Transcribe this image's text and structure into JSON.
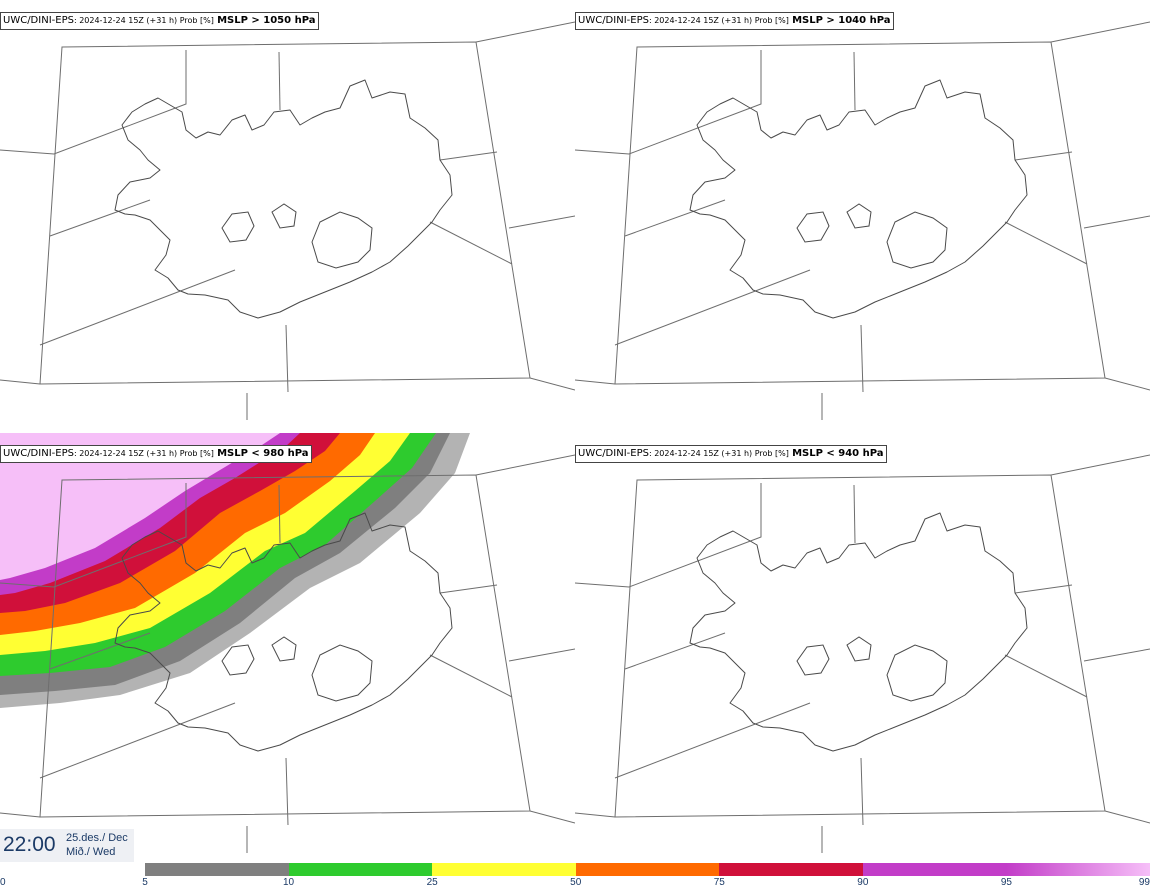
{
  "panels": [
    {
      "model": "UWC/DINI-EPS",
      "run": ": 2024-12-24 15Z (+31 h) Prob [%]",
      "param": "MSLP > 1050 hPa"
    },
    {
      "model": "UWC/DINI-EPS",
      "run": ": 2024-12-24 15Z (+31 h) Prob [%]",
      "param": "MSLP > 1040 hPa"
    },
    {
      "model": "UWC/DINI-EPS",
      "run": ": 2024-12-24 15Z (+31 h) Prob [%]",
      "param": "MSLP < 980 hPa"
    },
    {
      "model": "UWC/DINI-EPS",
      "run": ": 2024-12-24 15Z (+31 h) Prob [%]",
      "param": "MSLP < 940 hPa"
    }
  ],
  "valid": {
    "time": "22:00",
    "date_line1": "25.des./ Dec",
    "date_line2": "Mið./ Wed"
  },
  "colorbar": {
    "ticks": [
      "0",
      "5",
      "10",
      "25",
      "50",
      "75",
      "90",
      "95",
      "99"
    ],
    "colors": [
      "#ffffff",
      "#b3b3b3",
      "#7f7f7f",
      "#2ecb2e",
      "#ffff33",
      "#ff6a00",
      "#d0103a",
      "#c23cc8",
      "#f6bff8"
    ]
  }
}
